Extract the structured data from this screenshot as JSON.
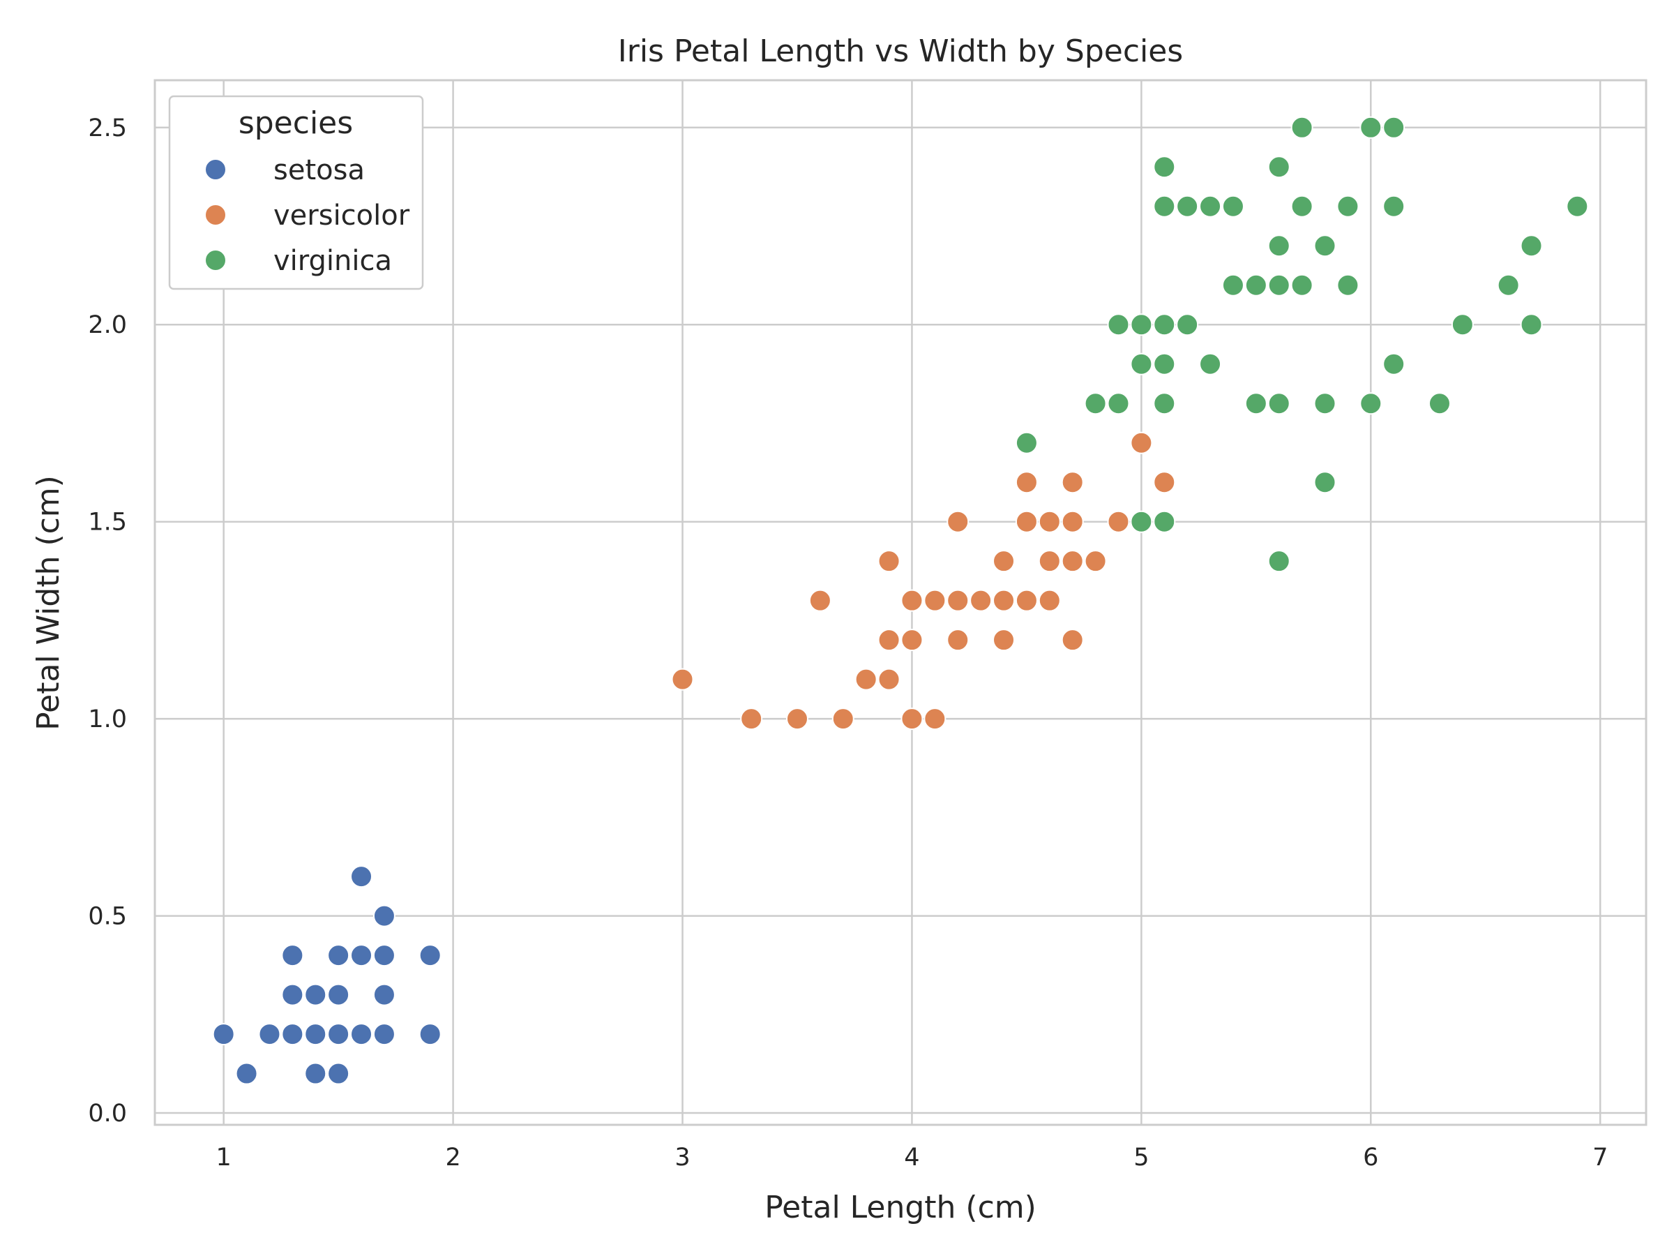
{
  "chart_data": {
    "type": "scatter",
    "title": "Iris Petal Length vs Width by Species",
    "xlabel": "Petal Length (cm)",
    "ylabel": "Petal Width (cm)",
    "xlim": [
      0.7,
      7.2
    ],
    "ylim": [
      -0.03,
      2.62
    ],
    "xticks": [
      "1",
      "2",
      "3",
      "4",
      "5",
      "6",
      "7"
    ],
    "yticks": [
      "0.0",
      "0.5",
      "1.0",
      "1.5",
      "2.0",
      "2.5"
    ],
    "grid": true,
    "legend": {
      "title": "species",
      "placement": "top-left"
    },
    "series": [
      {
        "name": "setosa",
        "color": "#4c72b0",
        "points": [
          [
            1.0,
            0.2
          ],
          [
            1.1,
            0.1
          ],
          [
            1.2,
            0.2
          ],
          [
            1.3,
            0.2
          ],
          [
            1.3,
            0.3
          ],
          [
            1.3,
            0.4
          ],
          [
            1.4,
            0.1
          ],
          [
            1.4,
            0.2
          ],
          [
            1.4,
            0.3
          ],
          [
            1.5,
            0.1
          ],
          [
            1.5,
            0.2
          ],
          [
            1.5,
            0.3
          ],
          [
            1.5,
            0.4
          ],
          [
            1.6,
            0.2
          ],
          [
            1.6,
            0.4
          ],
          [
            1.6,
            0.6
          ],
          [
            1.7,
            0.2
          ],
          [
            1.7,
            0.3
          ],
          [
            1.7,
            0.4
          ],
          [
            1.7,
            0.5
          ],
          [
            1.9,
            0.2
          ],
          [
            1.9,
            0.4
          ]
        ]
      },
      {
        "name": "versicolor",
        "color": "#dd8452",
        "points": [
          [
            3.0,
            1.1
          ],
          [
            3.3,
            1.0
          ],
          [
            3.5,
            1.0
          ],
          [
            3.6,
            1.3
          ],
          [
            3.7,
            1.0
          ],
          [
            3.8,
            1.1
          ],
          [
            3.9,
            1.1
          ],
          [
            3.9,
            1.2
          ],
          [
            3.9,
            1.4
          ],
          [
            4.0,
            1.0
          ],
          [
            4.0,
            1.2
          ],
          [
            4.0,
            1.3
          ],
          [
            4.1,
            1.0
          ],
          [
            4.1,
            1.3
          ],
          [
            4.2,
            1.2
          ],
          [
            4.2,
            1.3
          ],
          [
            4.2,
            1.5
          ],
          [
            4.3,
            1.3
          ],
          [
            4.4,
            1.2
          ],
          [
            4.4,
            1.3
          ],
          [
            4.4,
            1.4
          ],
          [
            4.5,
            1.3
          ],
          [
            4.5,
            1.5
          ],
          [
            4.5,
            1.6
          ],
          [
            4.6,
            1.3
          ],
          [
            4.6,
            1.4
          ],
          [
            4.6,
            1.5
          ],
          [
            4.7,
            1.2
          ],
          [
            4.7,
            1.4
          ],
          [
            4.7,
            1.5
          ],
          [
            4.7,
            1.6
          ],
          [
            4.8,
            1.4
          ],
          [
            4.9,
            1.5
          ],
          [
            5.0,
            1.7
          ],
          [
            5.1,
            1.6
          ]
        ]
      },
      {
        "name": "virginica",
        "color": "#55a868",
        "points": [
          [
            4.5,
            1.7
          ],
          [
            4.8,
            1.8
          ],
          [
            4.9,
            1.8
          ],
          [
            4.9,
            2.0
          ],
          [
            5.0,
            1.5
          ],
          [
            5.0,
            1.9
          ],
          [
            5.0,
            2.0
          ],
          [
            5.1,
            1.5
          ],
          [
            5.1,
            1.8
          ],
          [
            5.1,
            1.9
          ],
          [
            5.1,
            2.0
          ],
          [
            5.1,
            2.3
          ],
          [
            5.1,
            2.4
          ],
          [
            5.2,
            2.0
          ],
          [
            5.2,
            2.3
          ],
          [
            5.3,
            1.9
          ],
          [
            5.3,
            2.3
          ],
          [
            5.4,
            2.1
          ],
          [
            5.4,
            2.3
          ],
          [
            5.5,
            1.8
          ],
          [
            5.5,
            2.1
          ],
          [
            5.6,
            1.4
          ],
          [
            5.6,
            1.8
          ],
          [
            5.6,
            2.1
          ],
          [
            5.6,
            2.2
          ],
          [
            5.6,
            2.4
          ],
          [
            5.7,
            2.1
          ],
          [
            5.7,
            2.3
          ],
          [
            5.7,
            2.5
          ],
          [
            5.8,
            1.6
          ],
          [
            5.8,
            1.8
          ],
          [
            5.8,
            2.2
          ],
          [
            5.9,
            2.1
          ],
          [
            5.9,
            2.3
          ],
          [
            6.0,
            1.8
          ],
          [
            6.0,
            2.5
          ],
          [
            6.1,
            1.9
          ],
          [
            6.1,
            2.3
          ],
          [
            6.1,
            2.5
          ],
          [
            6.3,
            1.8
          ],
          [
            6.4,
            2.0
          ],
          [
            6.6,
            2.1
          ],
          [
            6.7,
            2.0
          ],
          [
            6.7,
            2.2
          ],
          [
            6.9,
            2.3
          ]
        ]
      }
    ]
  }
}
